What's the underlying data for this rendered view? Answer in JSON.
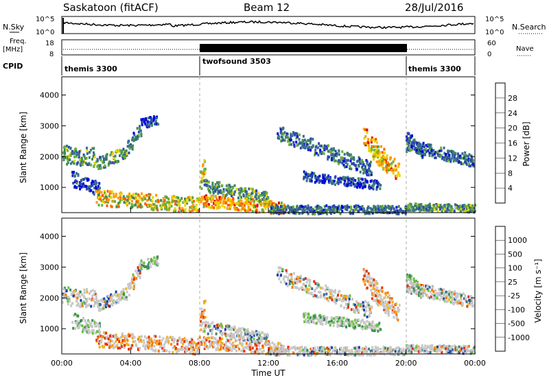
{
  "header": {
    "station": "Saskatoon (fitACF)",
    "beam": "Beam 12",
    "date": "28/Jul/2016"
  },
  "nsky": {
    "left_label": "N.Sky",
    "left_ticks": [
      "10^5",
      "10^0"
    ],
    "right_ticks": [
      "10^5",
      "10^0"
    ],
    "right_label": "N.Search"
  },
  "freq": {
    "left_label_1": "Freq.",
    "left_label_2": "[MHz]",
    "left_ticks": [
      "18",
      "8"
    ],
    "right_ticks": [
      "60",
      "0"
    ],
    "right_label": "Nave"
  },
  "cpid": {
    "label": "CPID",
    "segments": [
      {
        "name": "themis 3300",
        "start": 0,
        "end": 8
      },
      {
        "name": "twofsound 3503",
        "start": 8,
        "end": 20
      },
      {
        "name": "themis 3300",
        "start": 20,
        "end": 24
      }
    ]
  },
  "panels": {
    "power": {
      "ylabel": "Slant Range [km]",
      "yticks": [
        "1000",
        "2000",
        "3000",
        "4000"
      ],
      "colorbar_label": "Power [dB]",
      "colorbar_ticks": [
        "4",
        "8",
        "12",
        "16",
        "20",
        "24",
        "28"
      ],
      "colors": [
        "#0000dd",
        "#2a48b0",
        "#3a6e8f",
        "#3f8a5a",
        "#6cae3a",
        "#e6d400",
        "#ff9a00",
        "#ff5a00",
        "#e00000"
      ]
    },
    "velocity": {
      "ylabel": "Slant Range [km]",
      "yticks": [
        "1000",
        "2000",
        "3000",
        "4000"
      ],
      "colorbar_label": "Velocity [m s⁻¹]",
      "colorbar_ticks": [
        "1000",
        "500",
        "100",
        "25",
        "-25",
        "-100",
        "-500",
        "-1000"
      ],
      "colors": [
        "#1c3fb0",
        "#3c6ea0",
        "#3c8c58",
        "#66c23a",
        "#c8c8c8",
        "#c8c8c8",
        "#f2b21c",
        "#ff7a00",
        "#e83000"
      ]
    }
  },
  "xaxis": {
    "label": "Time UT",
    "ticks": [
      "00:00",
      "04:00",
      "08:00",
      "12:00",
      "16:00",
      "20:00",
      "00:00"
    ]
  },
  "chart_data": {
    "type": "heatmap",
    "title": "Saskatoon (fitACF)  Beam 12  28/Jul/2016",
    "xlabel": "Time UT",
    "ylabel": "Slant Range [km]",
    "xlim": [
      0,
      24
    ],
    "ylim": [
      180,
      4590
    ],
    "grid": false,
    "series": [
      {
        "name": "Power [dB]",
        "range": [
          4,
          30
        ]
      },
      {
        "name": "Velocity [m s-1]",
        "range": [
          -1000,
          1000
        ]
      }
    ],
    "mode_changes_hours": [
      8,
      20
    ]
  }
}
